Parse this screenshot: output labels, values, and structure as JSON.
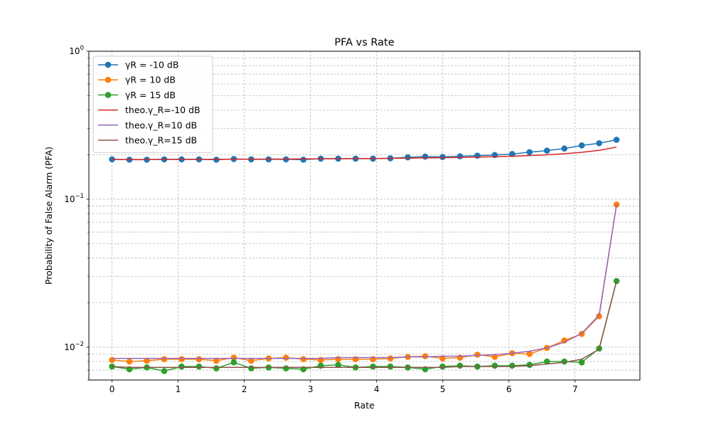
{
  "chart_data": {
    "type": "line",
    "title": "PFA vs Rate",
    "xlabel": "Rate",
    "ylabel": "Probability of False Alarm (PFA)",
    "xlim": [
      -0.35,
      7.98
    ],
    "ylim": [
      0.006,
      1.0
    ],
    "yscale": "log",
    "grid": true,
    "legend_position": "top-left",
    "x_ticks": [
      0,
      1,
      2,
      3,
      4,
      5,
      6,
      7
    ],
    "y_ticks": [
      {
        "value": 0.01,
        "base": "10",
        "exp": "−2"
      },
      {
        "value": 0.1,
        "base": "10",
        "exp": "−1"
      },
      {
        "value": 1,
        "base": "10",
        "exp": "0"
      }
    ],
    "x": [
      0,
      0.263,
      0.526,
      0.789,
      1.052,
      1.315,
      1.578,
      1.841,
      2.104,
      2.367,
      2.63,
      2.893,
      3.156,
      3.419,
      3.682,
      3.945,
      4.208,
      4.471,
      4.734,
      4.997,
      5.26,
      5.523,
      5.786,
      6.049,
      6.312,
      6.575,
      6.838,
      7.101,
      7.364,
      7.627
    ],
    "series": [
      {
        "name": "γR = -10 dB",
        "color": "#1f77b4",
        "kind": "marker_line",
        "values": [
          0.186,
          0.185,
          0.185,
          0.186,
          0.186,
          0.186,
          0.185,
          0.187,
          0.186,
          0.186,
          0.186,
          0.185,
          0.188,
          0.188,
          0.188,
          0.188,
          0.189,
          0.192,
          0.194,
          0.193,
          0.195,
          0.197,
          0.199,
          0.202,
          0.208,
          0.213,
          0.22,
          0.231,
          0.239,
          0.252
        ]
      },
      {
        "name": "γR = 10 dB",
        "color": "#ff7f0e",
        "kind": "marker_line",
        "values": [
          0.0082,
          0.008,
          0.0081,
          0.0083,
          0.0083,
          0.0083,
          0.0081,
          0.0085,
          0.0081,
          0.0084,
          0.0085,
          0.0083,
          0.0082,
          0.0083,
          0.0083,
          0.0083,
          0.0084,
          0.0086,
          0.0087,
          0.0084,
          0.0085,
          0.0089,
          0.0086,
          0.0091,
          0.009,
          0.0099,
          0.0111,
          0.0123,
          0.0162,
          0.092
        ]
      },
      {
        "name": "γR = 15 dB",
        "color": "#2ca02c",
        "kind": "marker_line",
        "values": [
          0.0074,
          0.0071,
          0.0073,
          0.0069,
          0.0074,
          0.0074,
          0.0072,
          0.0079,
          0.0072,
          0.0073,
          0.0072,
          0.0071,
          0.0075,
          0.0076,
          0.0073,
          0.0074,
          0.0074,
          0.0073,
          0.0071,
          0.0074,
          0.0075,
          0.0074,
          0.0075,
          0.0075,
          0.0076,
          0.008,
          0.008,
          0.0079,
          0.0098,
          0.028
        ]
      },
      {
        "name": "theo.γ_R=-10 dB",
        "color": "#d62728",
        "kind": "line",
        "values": [
          0.1855,
          0.1855,
          0.1856,
          0.1857,
          0.1858,
          0.1859,
          0.1861,
          0.1863,
          0.1865,
          0.1867,
          0.1869,
          0.1872,
          0.1875,
          0.1878,
          0.1881,
          0.1885,
          0.189,
          0.1895,
          0.1901,
          0.1908,
          0.1916,
          0.1926,
          0.1938,
          0.1953,
          0.1972,
          0.1997,
          0.203,
          0.2075,
          0.214,
          0.225
        ]
      },
      {
        "name": "theo.γ_R=10 dB",
        "color": "#9467bd",
        "kind": "line",
        "values": [
          0.0084,
          0.0084,
          0.0084,
          0.0084,
          0.0084,
          0.0084,
          0.0084,
          0.0084,
          0.0084,
          0.0084,
          0.0084,
          0.0084,
          0.0084,
          0.0085,
          0.0085,
          0.0085,
          0.0085,
          0.0086,
          0.0086,
          0.0087,
          0.0087,
          0.0088,
          0.0089,
          0.0091,
          0.0094,
          0.0099,
          0.0108,
          0.0124,
          0.0165,
          0.092
        ]
      },
      {
        "name": "theo.γ_R=15 dB",
        "color": "#8c564b",
        "kind": "line",
        "values": [
          0.0074,
          0.0073,
          0.0073,
          0.0073,
          0.0073,
          0.0073,
          0.0073,
          0.0073,
          0.0073,
          0.0073,
          0.0073,
          0.0073,
          0.0073,
          0.0073,
          0.0073,
          0.0073,
          0.0073,
          0.0073,
          0.0073,
          0.0073,
          0.0074,
          0.0074,
          0.0074,
          0.0074,
          0.0075,
          0.0077,
          0.0079,
          0.0083,
          0.0097,
          0.028
        ]
      }
    ]
  }
}
